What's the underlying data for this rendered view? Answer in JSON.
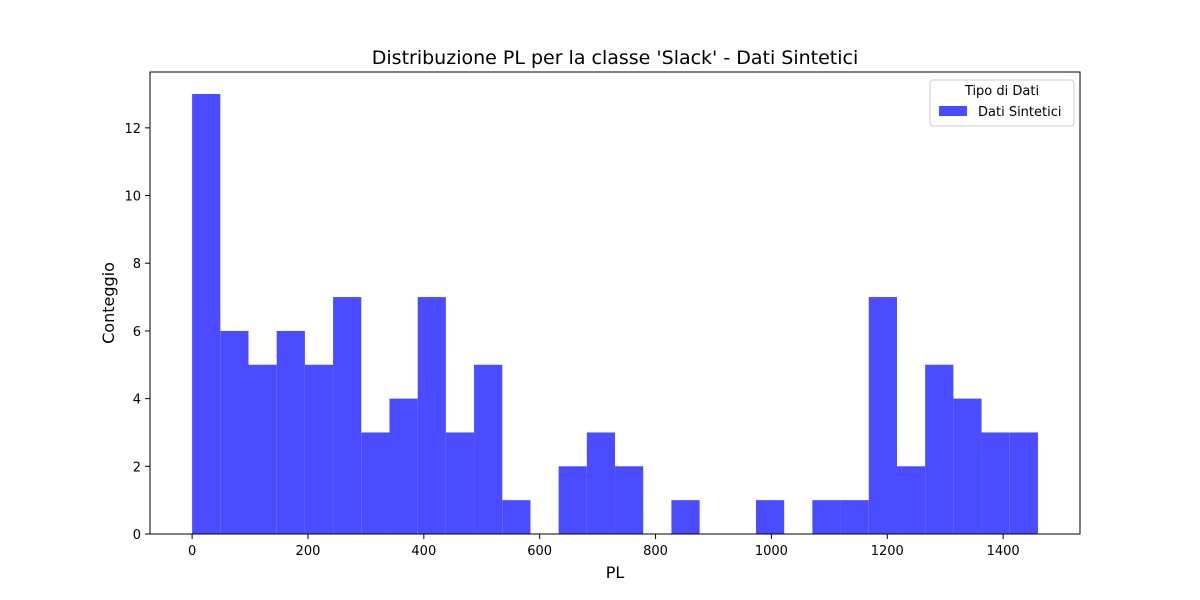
{
  "chart_data": {
    "type": "bar",
    "title": "Distribuzione PL per la classe 'Slack' - Dati Sintetici",
    "xlabel": "PL",
    "ylabel": "Conteggio",
    "xlim": [
      -72.7,
      1532.7
    ],
    "ylim": [
      0,
      13.65
    ],
    "xticks": [
      0,
      200,
      400,
      600,
      800,
      1000,
      1200,
      1400
    ],
    "yticks": [
      0,
      2,
      4,
      6,
      8,
      10,
      12
    ],
    "grid": false,
    "legend": {
      "title": "Tipo di Dati",
      "placement": "top-right"
    },
    "bar_color": "#4B4BFF",
    "series": [
      {
        "name": "Dati Sintetici",
        "bin_start": 0,
        "bin_width": 48.67,
        "values": [
          13,
          6,
          5,
          6,
          5,
          7,
          3,
          4,
          7,
          3,
          5,
          1,
          0,
          2,
          3,
          2,
          0,
          1,
          0,
          0,
          1,
          0,
          1,
          1,
          7,
          2,
          5,
          4,
          3,
          3
        ]
      }
    ]
  }
}
